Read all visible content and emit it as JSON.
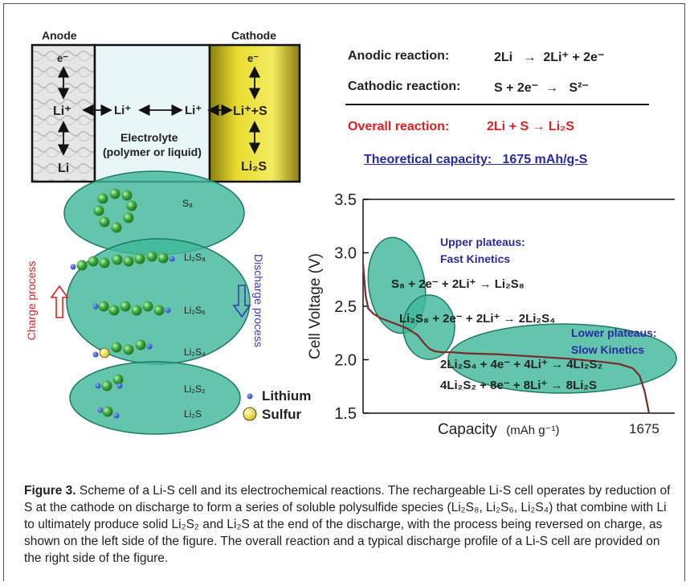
{
  "labels": {
    "anode": "Anode",
    "cathode": "Cathode",
    "e_anode": "e⁻",
    "e_cathode": "e⁻",
    "li_plus_1": "Li⁺",
    "li_plus_2": "Li⁺",
    "li_plus_3": "Li⁺",
    "li_plus_s": "Li⁺+S",
    "li_bottom": "Li",
    "li2s_bottom": "Li₂S",
    "electrolyte": "Electrolyte",
    "electrolyte_sub": "(polymer or liquid)",
    "charge_process": "Charge process",
    "discharge_process": "Discharge process",
    "species": [
      "S₈",
      "Li₂S₈",
      "Li₂S₆",
      "Li₂S₄",
      "Li₂S₂",
      "Li₂S"
    ],
    "legend_lithium": "Lithium",
    "legend_sulfur": "Sulfur"
  },
  "reactions": {
    "anodic_label": "Anodic reaction:",
    "anodic_eq": "2Li   →  2Li⁺ + 2e⁻",
    "cathodic_label": "Cathodic reaction:",
    "cathodic_eq": "S + 2e⁻  →   S²⁻",
    "overall_label": "Overall reaction:",
    "overall_eq": "2Li + S → Li₂S",
    "capacity": "Theoretical capacity:   1675 mAh/g-S"
  },
  "chart_data": {
    "type": "line",
    "ylabel": "Cell Voltage (V)",
    "xlabel": "Capacity",
    "xlabel_unit": "(mAh g⁻¹)",
    "x_tick_end": "1675",
    "y_ticks": [
      "3.5",
      "3.0",
      "2.5",
      "2.0",
      "1.5"
    ],
    "ylim": [
      1.5,
      3.5
    ],
    "xlim": [
      0,
      1675
    ],
    "series": [
      {
        "x": [
          0,
          15,
          30,
          60,
          100,
          150,
          200,
          260,
          320,
          360,
          390,
          420,
          460,
          520,
          600,
          800,
          1000,
          1200,
          1400,
          1500,
          1580,
          1620,
          1650,
          1675
        ],
        "y": [
          2.9,
          2.6,
          2.48,
          2.43,
          2.39,
          2.36,
          2.33,
          2.29,
          2.23,
          2.15,
          2.1,
          2.08,
          2.07,
          2.07,
          2.06,
          2.05,
          2.03,
          2.01,
          1.98,
          1.96,
          1.92,
          1.85,
          1.7,
          1.5
        ]
      }
    ],
    "annotations": {
      "upper_title": "Upper plateaus:",
      "upper_sub": "Fast Kinetics",
      "lower_title": "Lower plateaus:",
      "lower_sub": "Slow Kinetics",
      "eq1": "S₈ + 2e⁻ + 2Li⁺ → Li₂S₈",
      "eq2": "Li₂S₈ + 2e⁻ + 2Li⁺ → 2Li₂S₄",
      "eq3": "2Li₂S₄ + 4e⁻ + 4Li⁺ → 4Li₂S₂",
      "eq4": "4Li₂S₂ + 8e⁻ + 8Li⁺ → 8Li₂S"
    }
  },
  "caption": {
    "label": "Figure 3.",
    "text": "Scheme of a Li-S cell and its electrochemical reactions. The rechargeable Li-S cell operates by reduction of S at the cathode on discharge to form a series of soluble polysulfide species (Li₂S₈, Li₂S₆, Li₂S₄) that combine with Li to ultimately produce solid Li₂S₂ and Li₂S at the end of the discharge, with the process being reversed on charge, as shown on the left side of the figure. The overall reaction and a typical discharge profile of a Li-S cell are provided on the right side of the figure."
  },
  "colors": {
    "ellipse_fill": "#3fb89a",
    "ellipse_stroke": "#1f7a62",
    "sphere": "#2f9a2f",
    "lithium": "#1f3fb0",
    "sulfur": "#f0e020",
    "curve": "#7a2a2a",
    "cathode_gold": "#d8c81a"
  }
}
